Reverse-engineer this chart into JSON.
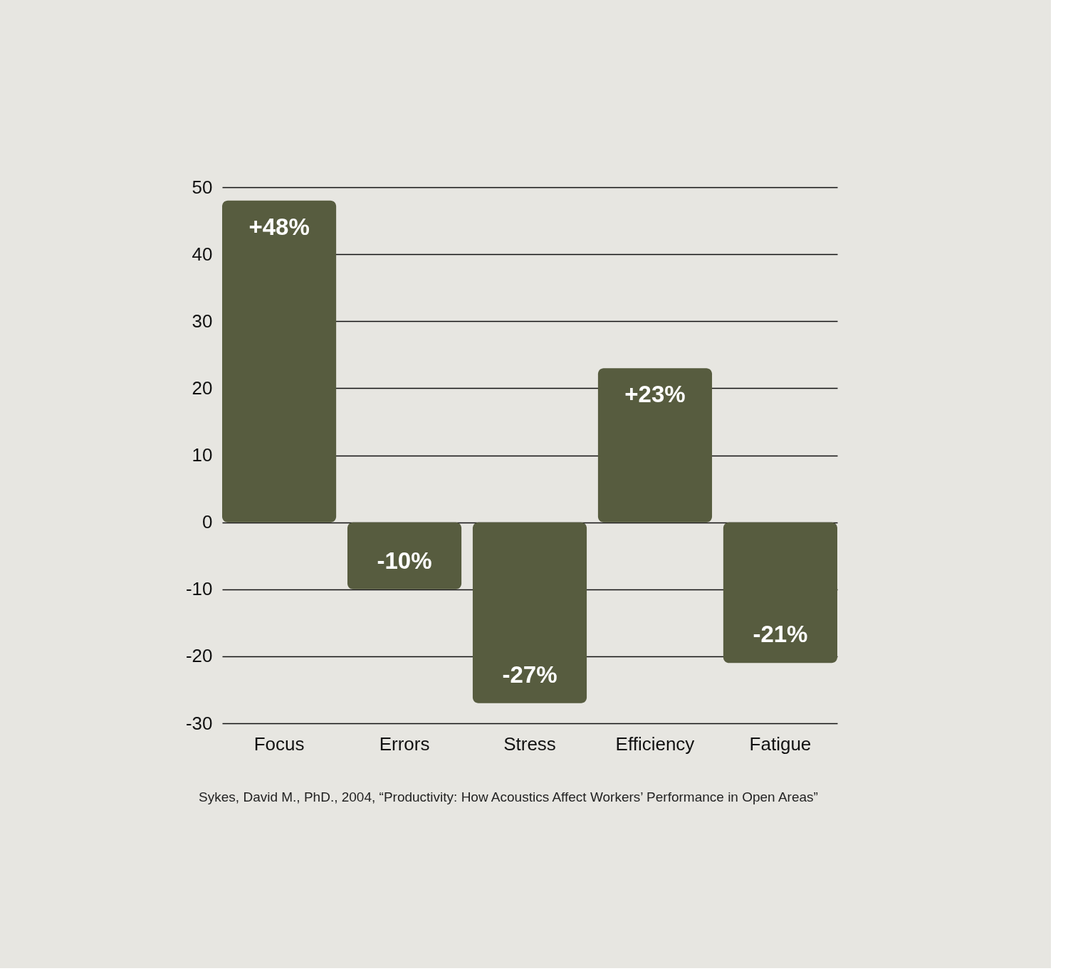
{
  "chart_data": {
    "type": "bar",
    "categories": [
      "Focus",
      "Errors",
      "Stress",
      "Efficiency",
      "Fatigue"
    ],
    "values": [
      48,
      -10,
      -27,
      23,
      -21
    ],
    "value_labels": [
      "+48%",
      "-10%",
      "-27%",
      "+23%",
      "-21%"
    ],
    "color": "#575c3f",
    "ylim": [
      -30,
      50
    ],
    "yticks": [
      -30,
      -20,
      -10,
      0,
      10,
      20,
      30,
      40,
      50
    ],
    "grid": "y",
    "annotations": [
      "Sykes, David M., PhD., 2004, “Productivity: How Acoustics Affect Workers’ Performance in Open Areas”"
    ]
  }
}
